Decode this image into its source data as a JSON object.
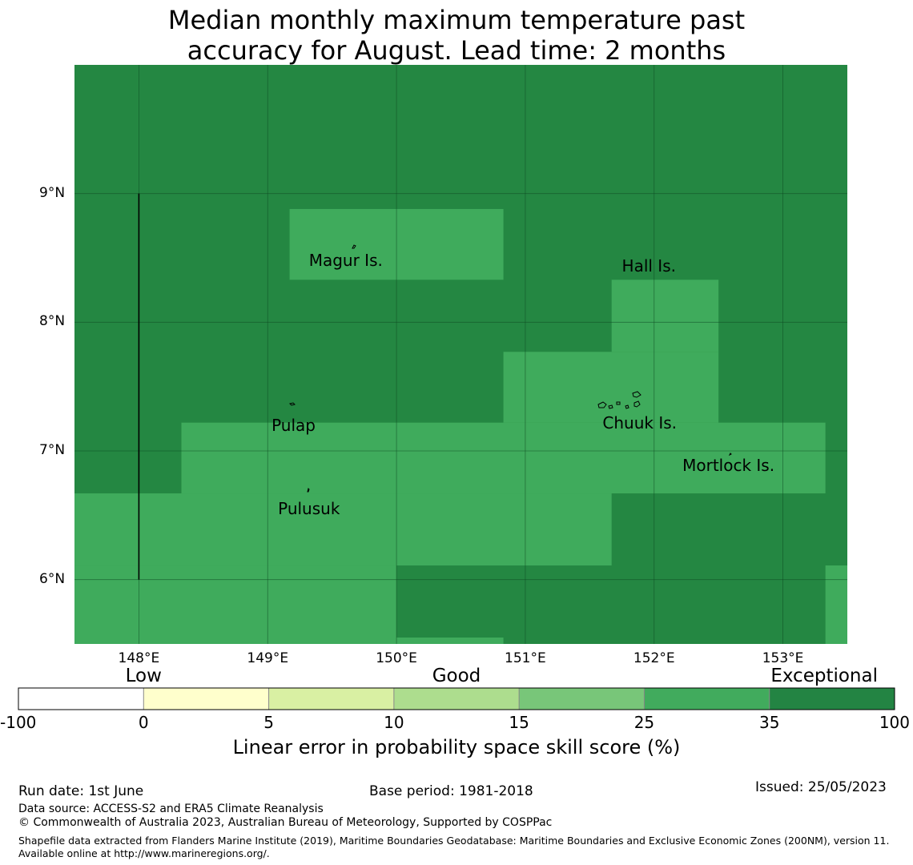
{
  "title": [
    "Median monthly maximum temperature past",
    "accuracy for August. Lead time: 2 months"
  ],
  "colors": {
    "exceptional": "#248742",
    "good_high": "#3fab5c",
    "grid": "#0e4a22",
    "bins": [
      "#ffffff",
      "#ffffcc",
      "#d9f0a3",
      "#addd8e",
      "#78c679",
      "#41ab5d",
      "#238443"
    ]
  },
  "map": {
    "lon_range": [
      147.5,
      153.5
    ],
    "lat_range": [
      5.5,
      10.0
    ],
    "lat_ticks": [
      {
        "value": 9,
        "label": "9°N"
      },
      {
        "value": 8,
        "label": "8°N"
      },
      {
        "value": 7,
        "label": "7°N"
      },
      {
        "value": 6,
        "label": "6°N"
      }
    ],
    "lon_ticks": [
      {
        "value": 148,
        "label": "148°E"
      },
      {
        "value": 149,
        "label": "149°E"
      },
      {
        "value": 150,
        "label": "150°E"
      },
      {
        "value": 151,
        "label": "151°E"
      },
      {
        "value": 152,
        "label": "152°E"
      },
      {
        "value": 153,
        "label": "153°E"
      }
    ],
    "background_category": "Exceptional",
    "good_regions": [
      {
        "lon": [
          149.17,
          150.83
        ],
        "lat": [
          8.33,
          8.88
        ]
      },
      {
        "lon": [
          151.67,
          152.5
        ],
        "lat": [
          7.77,
          8.33
        ]
      },
      {
        "lon": [
          150.83,
          152.5
        ],
        "lat": [
          7.22,
          7.77
        ]
      },
      {
        "lon": [
          148.33,
          153.33
        ],
        "lat": [
          6.67,
          7.22
        ]
      },
      {
        "lon": [
          147.5,
          151.67
        ],
        "lat": [
          6.11,
          6.67
        ]
      },
      {
        "lon": [
          147.5,
          150.0
        ],
        "lat": [
          5.5,
          6.11
        ]
      },
      {
        "lon": [
          153.33,
          153.5
        ],
        "lat": [
          5.5,
          6.11
        ]
      },
      {
        "lon": [
          150.0,
          150.83
        ],
        "lat": [
          5.5,
          5.55
        ]
      }
    ],
    "boundary_line": {
      "lon": 148.0,
      "lat": [
        6.0,
        9.0
      ]
    },
    "places": [
      {
        "name": "Magur Is.",
        "lon": 149.32,
        "lat": 8.48
      },
      {
        "name": "Hall Is.",
        "lon": 151.75,
        "lat": 8.44
      },
      {
        "name": "Pulap",
        "lon": 149.03,
        "lat": 7.2
      },
      {
        "name": "Chuuk Is.",
        "lon": 151.6,
        "lat": 7.22
      },
      {
        "name": "Mortlock Is.",
        "lon": 152.22,
        "lat": 6.89
      },
      {
        "name": "Pulusuk",
        "lon": 149.08,
        "lat": 6.55
      }
    ]
  },
  "colorbar": {
    "categories": [
      {
        "label": "Low",
        "center": 1
      },
      {
        "label": "Good",
        "center": 3.5
      },
      {
        "label": "Exceptional",
        "center": 6.5
      }
    ],
    "ticks": [
      "-100",
      "0",
      "5",
      "10",
      "15",
      "25",
      "35",
      "100"
    ],
    "label": "Linear error in probability space skill score (%)"
  },
  "footer": {
    "run_date": "Run date: 1st June",
    "base_period": "Base period: 1981-2018",
    "issued": "Issued: 25/05/2023",
    "data_source": "Data source: ACCESS-S2 and ERA5 Climate Reanalysis",
    "copyright": "© Commonwealth of Australia 2023, Australian Bureau of Meteorology, Supported by COSPPac",
    "shapefile": "Shapefile data extracted from Flanders Marine Institute (2019), Maritime Boundaries Geodatabase: Maritime Boundaries and Exclusive Economic Zones (200NM), version 11. Available online at http://www.marineregions.org/."
  }
}
